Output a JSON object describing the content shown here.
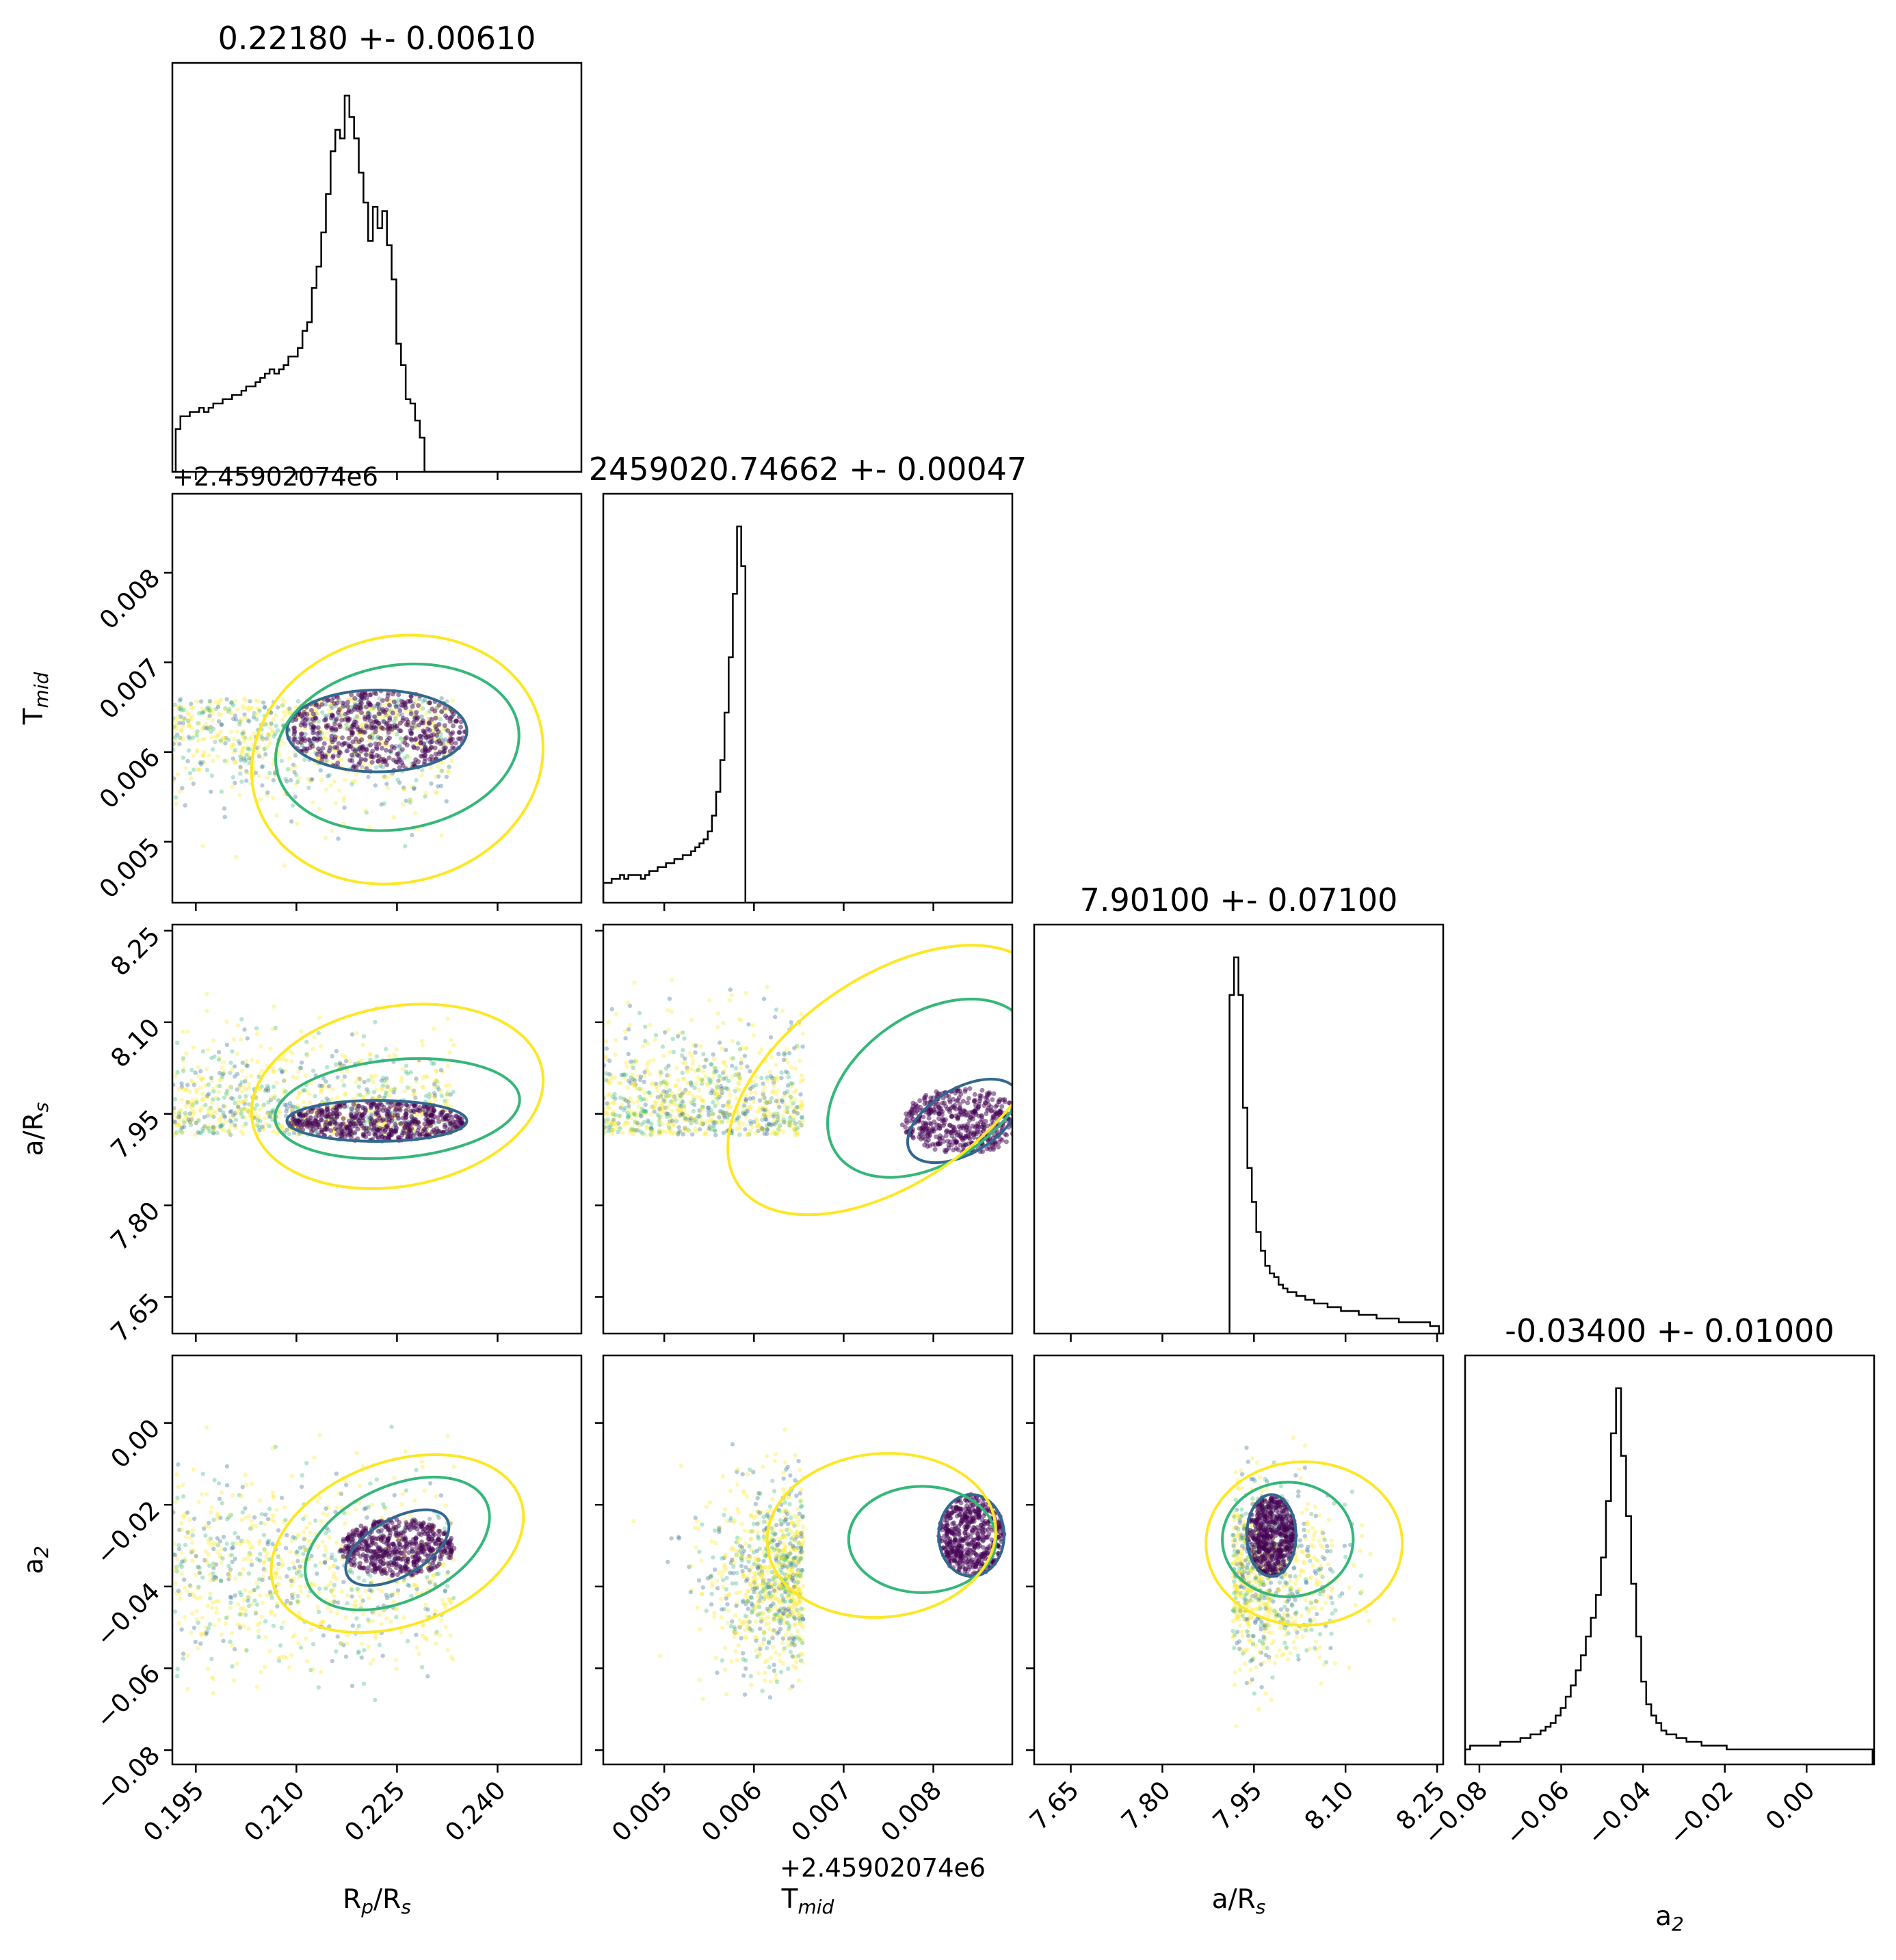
{
  "chart_data": {
    "type": "corner",
    "parameters": [
      {
        "key": "rp",
        "label_main": "R",
        "label_sub1": "p",
        "label_mid": "/R",
        "label_sub2": "s",
        "title": "0.22180 +- 0.00610",
        "range": [
          0.1915,
          0.2525
        ],
        "ticks": [
          {
            "v": 0.195,
            "t": "0.195"
          },
          {
            "v": 0.21,
            "t": "0.210"
          },
          {
            "v": 0.225,
            "t": "0.225"
          },
          {
            "v": 0.24,
            "t": "0.240"
          }
        ]
      },
      {
        "key": "tmid",
        "label_main": "T",
        "label_sub1": "mid",
        "label_mid": "",
        "label_sub2": "",
        "title": "2459020.74662 +- 0.00047",
        "range": [
          0.00432,
          0.00888
        ],
        "offset": "+2.45902074e6",
        "ticks": [
          {
            "v": 0.005,
            "t": "0.005"
          },
          {
            "v": 0.006,
            "t": "0.006"
          },
          {
            "v": 0.007,
            "t": "0.007"
          },
          {
            "v": 0.008,
            "t": "0.008"
          }
        ]
      },
      {
        "key": "ars",
        "label_main": "a/R",
        "label_sub1": "",
        "label_mid": "",
        "label_sub2": "s",
        "title": "7.90100 +- 0.07100",
        "range": [
          7.59,
          8.26
        ],
        "ticks": [
          {
            "v": 7.65,
            "t": "7.65"
          },
          {
            "v": 7.8,
            "t": "7.80"
          },
          {
            "v": 7.95,
            "t": "7.95"
          },
          {
            "v": 8.1,
            "t": "8.10"
          },
          {
            "v": 8.25,
            "t": "8.25"
          }
        ]
      },
      {
        "key": "a2",
        "label_main": "a",
        "label_sub1": "",
        "label_mid": "",
        "label_sub2": "2",
        "title": "-0.03400 +- 0.01000",
        "range": [
          -0.0835,
          0.0165
        ],
        "ticks": [
          {
            "v": -0.08,
            "t": "−0.08"
          },
          {
            "v": -0.06,
            "t": "−0.06"
          },
          {
            "v": -0.04,
            "t": "−0.04"
          },
          {
            "v": -0.02,
            "t": "−0.02"
          },
          {
            "v": 0.0,
            "t": "0.00"
          }
        ]
      }
    ],
    "histograms": [
      {
        "param": "rp",
        "x0": 0.192,
        "bin": 0.0007,
        "counts": [
          10,
          13,
          13,
          14,
          14,
          15,
          14,
          15,
          16,
          16,
          17,
          17,
          18,
          18,
          19,
          20,
          20,
          21,
          22,
          23,
          24,
          23,
          24,
          25,
          27,
          27,
          29,
          33,
          35,
          43,
          48,
          56,
          65,
          75,
          80,
          78,
          88,
          83,
          78,
          70,
          63,
          54,
          62,
          57,
          61,
          53,
          45,
          30,
          25,
          17,
          16,
          12,
          8,
          0
        ]
      },
      {
        "param": "tmid",
        "x0": 0.00432,
        "bin": 4.66e-05,
        "counts": [
          5,
          5,
          6,
          6,
          7,
          6,
          7,
          7,
          7,
          6,
          7,
          8,
          8,
          9,
          9,
          10,
          10,
          11,
          11,
          12,
          12,
          13,
          14,
          15,
          16,
          18,
          22,
          28,
          36,
          48,
          62,
          78,
          95,
          85,
          0
        ]
      },
      {
        "param": "ars",
        "x0": 7.91,
        "bin": 0.0073,
        "counts": [
          90,
          100,
          90,
          60,
          44,
          35,
          27,
          22,
          18,
          16,
          15,
          13,
          12,
          11,
          11,
          10,
          10,
          9,
          9,
          8,
          8,
          8,
          7,
          7,
          7,
          6,
          6,
          6,
          6,
          5,
          5,
          5,
          5,
          4,
          4,
          4,
          4,
          4,
          3,
          3,
          3,
          3,
          3,
          3,
          3,
          2,
          2
        ]
      },
      {
        "param": "a2",
        "x0": -0.0835,
        "bin": 0.00123,
        "counts": [
          4,
          5,
          5,
          5,
          5,
          5,
          5,
          6,
          6,
          6,
          6,
          7,
          7,
          8,
          8,
          9,
          10,
          11,
          13,
          15,
          18,
          21,
          25,
          29,
          34,
          39,
          45,
          55,
          70,
          88,
          100,
          82,
          66,
          48,
          34,
          22,
          16,
          13,
          11,
          9,
          8,
          8,
          7,
          7,
          6,
          6,
          6,
          5,
          5,
          5,
          5,
          5,
          4,
          4,
          4,
          4,
          4,
          4,
          4,
          4,
          4,
          4,
          4,
          4,
          4,
          4,
          4,
          4,
          4,
          4,
          4,
          4,
          4,
          4,
          4,
          4,
          4,
          4,
          4,
          4,
          4
        ]
      }
    ],
    "density_colors": [
      "#fde725",
      "#35b779",
      "#31688e",
      "#440154"
    ],
    "line_color": "#000000"
  }
}
